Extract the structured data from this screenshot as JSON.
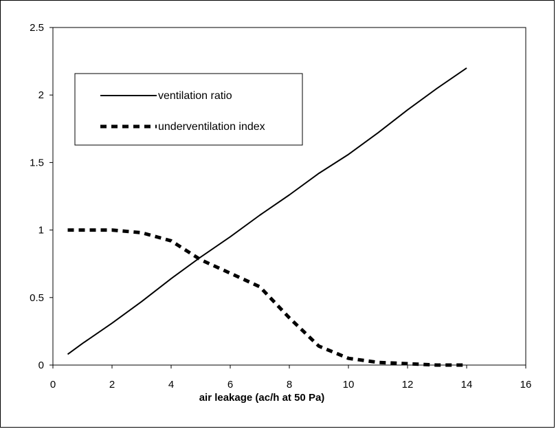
{
  "chart_data": {
    "type": "line",
    "title": "",
    "xlabel": "air leakage (ac/h at 50 Pa)",
    "ylabel": "",
    "xlim": [
      0,
      16
    ],
    "ylim": [
      0,
      2.5
    ],
    "xticks": [
      0,
      2,
      4,
      6,
      8,
      10,
      12,
      14,
      16
    ],
    "yticks": [
      0,
      0.5,
      1,
      1.5,
      2,
      2.5
    ],
    "xtick_labels": [
      "0",
      "2",
      "4",
      "6",
      "8",
      "10",
      "12",
      "14",
      "16"
    ],
    "ytick_labels": [
      "0",
      "0.5",
      "1",
      "1.5",
      "2",
      "2.5"
    ],
    "grid": false,
    "legend_position": "top-left",
    "series": [
      {
        "name": "ventilation ratio",
        "style": "solid",
        "color": "#000000",
        "x": [
          0.5,
          1,
          2,
          3,
          4,
          5,
          6,
          7,
          8,
          9,
          10,
          11,
          12,
          13,
          14
        ],
        "y": [
          0.08,
          0.16,
          0.31,
          0.47,
          0.64,
          0.8,
          0.95,
          1.11,
          1.26,
          1.42,
          1.56,
          1.72,
          1.89,
          2.05,
          2.2
        ]
      },
      {
        "name": "underventilation index",
        "style": "dashed",
        "color": "#000000",
        "x": [
          0.5,
          1,
          2,
          3,
          3.5,
          4,
          5,
          6,
          7,
          8,
          9,
          10,
          11,
          12,
          13,
          14
        ],
        "y": [
          1.0,
          1.0,
          1.0,
          0.98,
          0.95,
          0.92,
          0.78,
          0.68,
          0.58,
          0.35,
          0.14,
          0.05,
          0.02,
          0.01,
          0.0,
          0.0
        ]
      }
    ]
  }
}
